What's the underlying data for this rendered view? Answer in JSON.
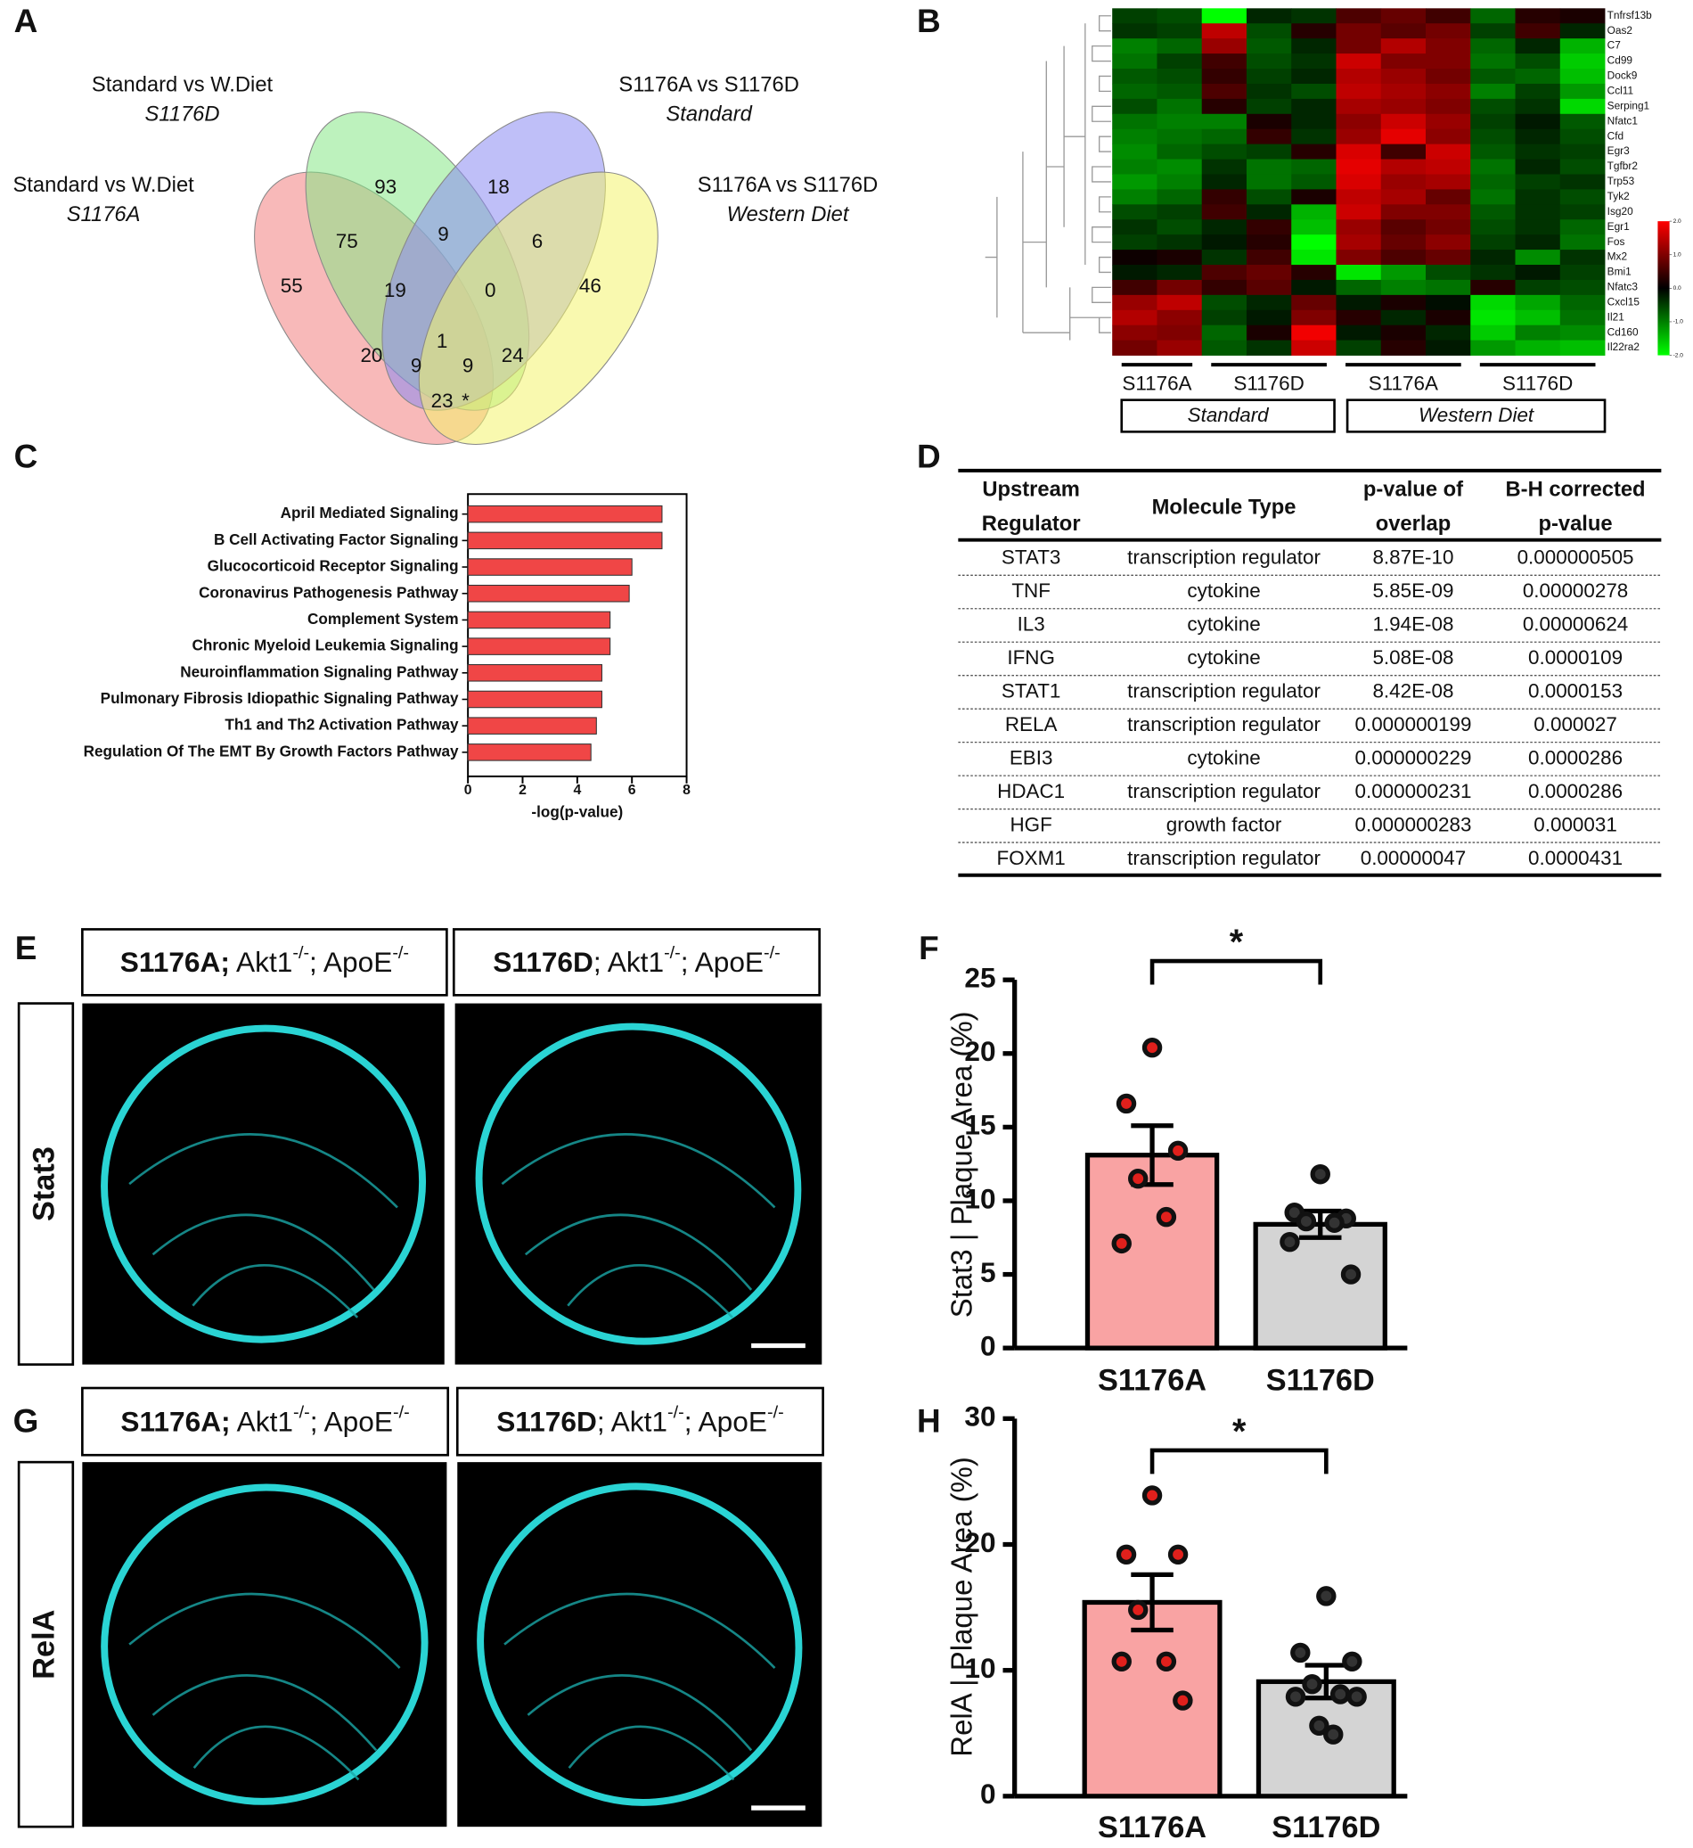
{
  "panels": [
    "A",
    "B",
    "C",
    "D",
    "E",
    "F",
    "G",
    "H"
  ],
  "venn": {
    "sets": [
      {
        "name": "Standard vs W.Diet",
        "sub": "S1176A",
        "color": "#f27f7f"
      },
      {
        "name": "Standard vs W.Diet",
        "sub": "S1176D",
        "color": "#86e886"
      },
      {
        "name": "S1176A vs S1176D",
        "sub": "Standard",
        "color": "#8a8af2"
      },
      {
        "name": "S1176A vs S1176D",
        "sub": "Western Diet",
        "color": "#f4f46e"
      }
    ],
    "regions": [
      55,
      93,
      18,
      46,
      75,
      9,
      6,
      19,
      0,
      20,
      1,
      24,
      9,
      9,
      23
    ],
    "star": "*"
  },
  "heatmap": {
    "genes": [
      "Tnfrsf13b",
      "Oas2",
      "C7",
      "Cd99",
      "Dock9",
      "Ccl11",
      "Serping1",
      "Nfatc1",
      "Cfd",
      "Egr3",
      "Tgfbr2",
      "Trp53",
      "Tyk2",
      "Isg20",
      "Egr1",
      "Fos",
      "Mx2",
      "Bmi1",
      "Nfatc3",
      "Cxcl15",
      "Il21",
      "Cd160",
      "Il22ra2"
    ],
    "groups": [
      "S1176A",
      "S1176D",
      "S1176A",
      "S1176D"
    ],
    "diets": [
      "Standard",
      "Western Diet"
    ],
    "values": [
      [
        -0.5,
        -0.6,
        -2,
        -0.3,
        -0.4,
        0.6,
        0.8,
        0.5,
        -0.8,
        0.3,
        0.2
      ],
      [
        -0.4,
        -0.5,
        1.5,
        -0.6,
        0.3,
        0.9,
        0.7,
        0.9,
        -0.5,
        0.5,
        -0.3
      ],
      [
        -1,
        -0.8,
        1.2,
        -0.7,
        -0.3,
        0.9,
        1.4,
        1,
        -0.8,
        -0.3,
        -1.4
      ],
      [
        -0.9,
        -0.5,
        0.5,
        -0.6,
        -0.4,
        1.6,
        1,
        1,
        -0.9,
        -0.6,
        -1.6
      ],
      [
        -0.7,
        -0.6,
        0.4,
        -0.5,
        -0.3,
        1.4,
        1.2,
        0.9,
        -0.7,
        -0.8,
        -1.5
      ],
      [
        -0.8,
        -0.7,
        0.6,
        -0.4,
        -0.6,
        1.5,
        1.3,
        1.1,
        -1,
        -0.5,
        -1.2
      ],
      [
        -0.6,
        -0.9,
        0.3,
        -0.5,
        -0.3,
        1.3,
        1.2,
        1,
        -0.6,
        -0.4,
        -1.7
      ],
      [
        -0.9,
        -1,
        -1,
        0.2,
        -0.3,
        1.1,
        1.6,
        1.2,
        -0.5,
        -0.2,
        -0.7
      ],
      [
        -1,
        -0.9,
        -0.8,
        0.4,
        -0.4,
        1.2,
        1.8,
        1.1,
        -0.6,
        -0.3,
        -0.6
      ],
      [
        -1.1,
        -0.8,
        -0.6,
        -0.5,
        0.3,
        1.7,
        0.5,
        1.6,
        -0.7,
        -0.4,
        -0.5
      ],
      [
        -1,
        -1.1,
        -0.4,
        -0.9,
        -0.8,
        1.8,
        1.4,
        1.5,
        -0.9,
        -0.3,
        -0.6
      ],
      [
        -1.2,
        -1,
        -0.3,
        -0.9,
        -0.7,
        1.7,
        1.2,
        1.3,
        -0.8,
        -0.5,
        -0.4
      ],
      [
        -1,
        -0.8,
        0.4,
        -0.6,
        0.2,
        1.5,
        1.3,
        0.8,
        -0.9,
        -0.4,
        -0.6
      ],
      [
        -0.6,
        -0.5,
        0.5,
        -0.3,
        -1.4,
        1.6,
        1,
        1,
        -0.7,
        -0.4,
        -0.5
      ],
      [
        -0.4,
        -0.6,
        -0.3,
        0.4,
        -1.5,
        1.2,
        0.7,
        0.9,
        -0.6,
        -0.4,
        -0.8
      ],
      [
        -0.5,
        -0.4,
        -0.2,
        0.3,
        -2,
        1.3,
        0.8,
        1.1,
        -0.5,
        -0.3,
        -0.9
      ],
      [
        0.1,
        0.2,
        -0.4,
        0.5,
        -1.8,
        1,
        0.6,
        0.8,
        -0.3,
        -1.1,
        -0.4
      ],
      [
        -0.2,
        -0.3,
        0.6,
        0.8,
        0.3,
        -1.8,
        -1.2,
        -0.6,
        -0.4,
        -0.2,
        -0.5
      ],
      [
        0.5,
        0.9,
        0.4,
        0.7,
        -0.2,
        -0.8,
        -1,
        -0.9,
        0.3,
        -0.5,
        -0.6
      ],
      [
        1.2,
        1.5,
        -0.6,
        -0.3,
        0.8,
        -0.2,
        0.2,
        -0.1,
        -1.7,
        -1.3,
        -0.8
      ],
      [
        1.4,
        1.1,
        -0.5,
        -0.2,
        1,
        0.3,
        -0.3,
        0.2,
        -1.8,
        -1.5,
        -0.9
      ],
      [
        1.1,
        1,
        -0.8,
        0.2,
        1.9,
        -0.2,
        0.2,
        -0.3,
        -1.6,
        -1,
        -1.1
      ],
      [
        0.9,
        1.2,
        -0.7,
        -0.4,
        1.6,
        -0.5,
        0.3,
        -0.2,
        -1.2,
        -1.4,
        -1.5
      ]
    ],
    "zlim": [
      -2,
      2
    ],
    "zticks": [
      {
        "value": 2,
        "label": "2.0"
      },
      {
        "value": 1,
        "label": "1.0"
      },
      {
        "value": 0,
        "label": "0.0"
      },
      {
        "value": -1,
        "label": "-1.0"
      },
      {
        "value": -2,
        "label": "-2.0"
      }
    ]
  },
  "table": {
    "header": [
      [
        "Upstream",
        "Regulator"
      ],
      [
        "Molecule Type"
      ],
      [
        "p-value of",
        "overlap"
      ],
      [
        "B-H corrected",
        "p-value"
      ]
    ],
    "rows": [
      [
        "STAT3",
        "transcription regulator",
        "8.87E-10",
        "0.000000505"
      ],
      [
        "TNF",
        "cytokine",
        "5.85E-09",
        "0.00000278"
      ],
      [
        "IL3",
        "cytokine",
        "1.94E-08",
        "0.00000624"
      ],
      [
        "IFNG",
        "cytokine",
        "5.08E-08",
        "0.0000109"
      ],
      [
        "STAT1",
        "transcription regulator",
        "8.42E-08",
        "0.0000153"
      ],
      [
        "RELA",
        "transcription regulator",
        "0.000000199",
        "0.000027"
      ],
      [
        "EBI3",
        "cytokine",
        "0.000000229",
        "0.0000286"
      ],
      [
        "HDAC1",
        "transcription regulator",
        "0.000000231",
        "0.0000286"
      ],
      [
        "HGF",
        "growth factor",
        "0.000000283",
        "0.000031"
      ],
      [
        "FOXM1",
        "transcription regulator",
        "0.00000047",
        "0.0000431"
      ]
    ]
  },
  "images": {
    "labels": [
      [
        {
          "text": "S1176A;",
          "bold": true
        },
        {
          "text": " Akt1"
        },
        {
          "text": "-/-",
          "sup": true
        },
        {
          "text": "; ApoE"
        },
        {
          "text": "-/-",
          "sup": true
        }
      ],
      [
        {
          "text": "S1176D",
          "bold": true
        },
        {
          "text": "; Akt1"
        },
        {
          "text": "-/-",
          "sup": true
        },
        {
          "text": "; ApoE"
        },
        {
          "text": "-/-",
          "sup": true
        }
      ]
    ],
    "stains": [
      "Stat3",
      "RelA"
    ]
  },
  "chart_data": [
    {
      "type": "hbar",
      "xlabel": "-log(p-value)",
      "categories": [
        "April Mediated Signaling",
        "B Cell Activating Factor Signaling",
        "Glucocorticoid Receptor Signaling",
        "Coronavirus Pathogenesis Pathway",
        "Complement System",
        "Chronic Myeloid Leukemia Signaling",
        "Neuroinflammation Signaling Pathway",
        "Pulmonary Fibrosis Idiopathic Signaling Pathway",
        "Th1 and Th2 Activation Pathway",
        "Regulation Of The EMT By Growth Factors Pathway"
      ],
      "values": [
        7.1,
        7.1,
        6.0,
        5.9,
        5.2,
        5.2,
        4.9,
        4.9,
        4.7,
        4.5
      ],
      "color": "#f04646",
      "xlim": [
        0,
        8
      ],
      "xticks": [
        0,
        2,
        4,
        6,
        8
      ]
    },
    {
      "type": "bar",
      "ylabel": "Stat3 | Plaque Area (%)",
      "categories": [
        "S1176A",
        "S1176D"
      ],
      "values": [
        13.1,
        8.4
      ],
      "errors": [
        2.0,
        0.9
      ],
      "points": [
        [
          20.4,
          16.6,
          13.4,
          11.5,
          8.9,
          7.1
        ],
        [
          11.8,
          9.2,
          8.8,
          8.6,
          8.5,
          7.2,
          5.0
        ]
      ],
      "colors": [
        "#f9a3a3",
        "#d4d4d4"
      ],
      "point_colors": [
        "#e0201c",
        "#333333"
      ],
      "ylim": [
        0,
        25
      ],
      "yticks": [
        0,
        5,
        10,
        15,
        20,
        25
      ],
      "annotation": "*"
    },
    {
      "type": "bar",
      "ylabel": "RelA | Plaque Area (%)",
      "categories": [
        "S1176A",
        "S1176D"
      ],
      "values": [
        15.4,
        9.1
      ],
      "errors": [
        2.2,
        1.3
      ],
      "points": [
        [
          23.9,
          19.2,
          19.2,
          14.8,
          10.7,
          10.7,
          7.6
        ],
        [
          15.9,
          11.4,
          10.7,
          8.9,
          8.1,
          7.9,
          7.9,
          5.6,
          4.9
        ]
      ],
      "colors": [
        "#f9a3a3",
        "#d4d4d4"
      ],
      "point_colors": [
        "#e0201c",
        "#333333"
      ],
      "ylim": [
        0,
        30
      ],
      "yticks": [
        0,
        10,
        20,
        30
      ],
      "annotation": "*"
    }
  ]
}
